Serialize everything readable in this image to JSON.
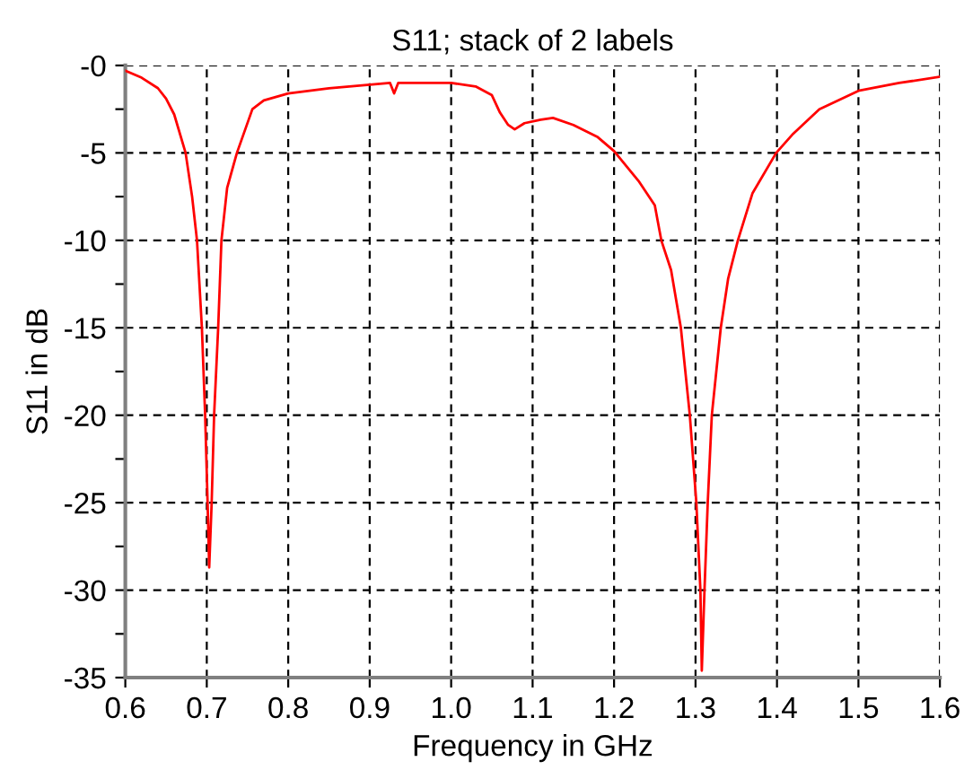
{
  "chart_data": {
    "type": "line",
    "title": "S11; stack of 2 labels",
    "xlabel": "Frequency in GHz",
    "ylabel": "S11 in dB",
    "xlim": [
      0.6,
      1.6
    ],
    "xticks": [
      0.6,
      0.7,
      0.8,
      0.9,
      {
        "value": 1.0,
        "label": "1.0"
      },
      1.1,
      1.2,
      1.3,
      1.4,
      1.5,
      1.6
    ],
    "ylim": [
      -35,
      0
    ],
    "yticks": [
      -35,
      {
        "value": -32.5,
        "label": null
      },
      -30,
      {
        "value": -27.5,
        "label": null
      },
      -25,
      {
        "value": -22.5,
        "label": null
      },
      -20,
      {
        "value": -17.5,
        "label": null
      },
      -15,
      {
        "value": -12.5,
        "label": null
      },
      -10,
      {
        "value": -7.5,
        "label": null
      },
      -5,
      {
        "value": -2.5,
        "label": null
      },
      {
        "value": 0,
        "label": "-0"
      }
    ],
    "grid": true,
    "line_style": "solid",
    "marker": "none",
    "series": [
      {
        "color": "#ff0000",
        "x": [
          0.6,
          0.62,
          0.64,
          0.65,
          0.66,
          0.674,
          0.682,
          0.688,
          0.694,
          0.698,
          0.701,
          0.703,
          0.706,
          0.709,
          0.714,
          0.718,
          0.725,
          0.737,
          0.756,
          0.77,
          0.8,
          0.85,
          0.9,
          0.925,
          0.93,
          0.935,
          0.95,
          1.0,
          1.03,
          1.05,
          1.06,
          1.07,
          1.078,
          1.09,
          1.11,
          1.125,
          1.15,
          1.18,
          1.2,
          1.23,
          1.25,
          1.258,
          1.27,
          1.282,
          1.293,
          1.301,
          1.306,
          1.3077,
          1.311,
          1.315,
          1.32,
          1.331,
          1.34,
          1.352,
          1.37,
          1.399,
          1.42,
          1.452,
          1.5,
          1.55,
          1.6
        ],
        "values": [
          -0.3,
          -0.7,
          -1.3,
          -1.9,
          -2.8,
          -5,
          -7.5,
          -10,
          -15,
          -20,
          -25,
          -28.7,
          -25,
          -20,
          -15,
          -10,
          -7,
          -5,
          -2.5,
          -2.0,
          -1.6,
          -1.3,
          -1.1,
          -1.0,
          -1.6,
          -1.0,
          -1.0,
          -1.0,
          -1.2,
          -1.7,
          -2.7,
          -3.4,
          -3.65,
          -3.3,
          -3.1,
          -3.0,
          -3.4,
          -4.1,
          -4.9,
          -6.6,
          -8.0,
          -10,
          -11.7,
          -15,
          -20,
          -25,
          -30,
          -34.6,
          -30,
          -25,
          -20,
          -15,
          -12.2,
          -10,
          -7.3,
          -5,
          -3.9,
          -2.5,
          -1.45,
          -1.0,
          -0.65
        ]
      }
    ]
  }
}
